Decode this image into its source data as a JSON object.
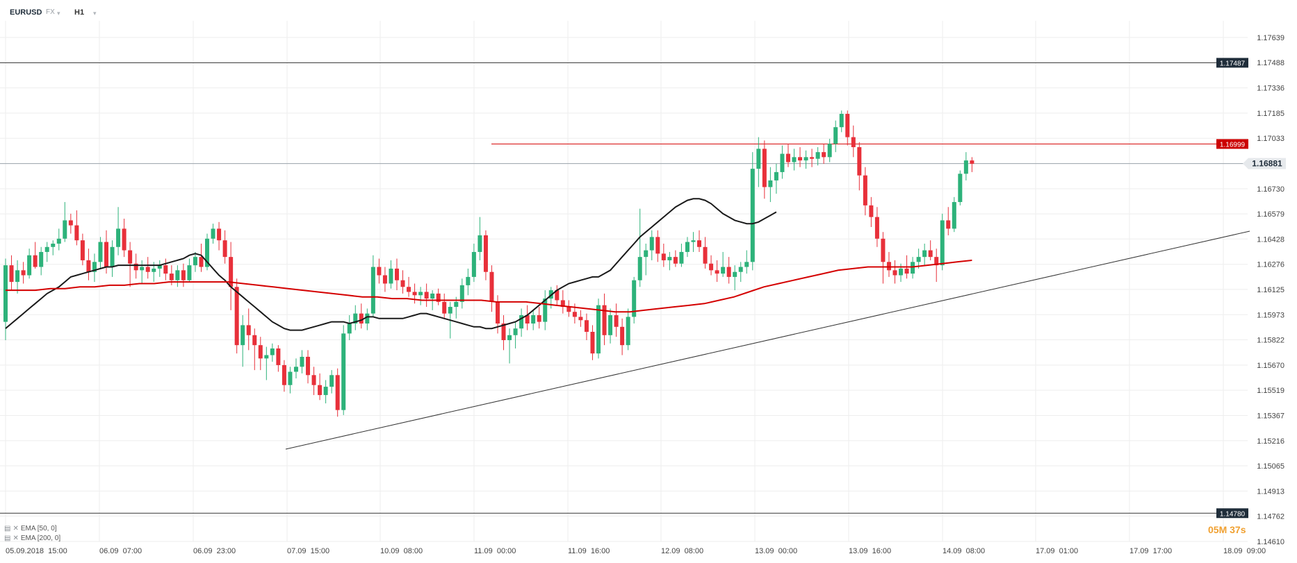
{
  "toolbar": {
    "symbol": "EURUSD",
    "market": "FX",
    "timeframe": "H1"
  },
  "legend": [
    {
      "label": "EMA [50, 0]",
      "color": "#1a1a1a"
    },
    {
      "label": "EMA [200, 0]",
      "color": "#d40000"
    }
  ],
  "countdown": {
    "minutes": "05M",
    "seconds": "37s"
  },
  "price_tags": {
    "upper_line": "1.17487",
    "alert_line": "1.16999",
    "current": "1.16881",
    "lower_line": "1.14780"
  },
  "colors": {
    "up": "#2db27a",
    "down": "#e8303a",
    "ema50": "#1a1a1a",
    "ema200": "#d40000",
    "alert": "#d40000",
    "grid": "#eeeeee",
    "tag_dark": "#1f2d3a",
    "tag_alert": "#cc0000",
    "tag_current_bg": "#e6e9ec",
    "countdown": "#f0a030"
  },
  "chart_data": {
    "type": "candlestick",
    "y_ticks": [
      "1.17639",
      "1.17488",
      "1.17336",
      "1.17185",
      "1.17033",
      "1.16881",
      "1.16730",
      "1.16579",
      "1.16428",
      "1.16276",
      "1.16125",
      "1.15973",
      "1.15822",
      "1.15670",
      "1.15519",
      "1.15367",
      "1.15216",
      "1.15065",
      "1.14913",
      "1.14762",
      "1.14610"
    ],
    "x_ticks": [
      "05.09.2018  15:00",
      "06.09  07:00",
      "06.09  23:00",
      "07.09  15:00",
      "10.09  08:00",
      "11.09  00:00",
      "11.09  16:00",
      "12.09  08:00",
      "13.09  00:00",
      "13.09  16:00",
      "14.09  08:00",
      "17.09  01:00",
      "17.09  17:00",
      "18.09  09:00"
    ],
    "ylim": [
      1.1461,
      1.17639
    ],
    "horizontal_levels": {
      "upper": 1.17487,
      "alert": 1.16999,
      "current": 1.16881,
      "lower": 1.1478
    },
    "trendline": {
      "from": [
        "07.09 16:00",
        1.1519
      ],
      "to": [
        "18.09 08:00",
        1.1647
      ]
    },
    "candles": [
      [
        1.1593,
        1.1631,
        1.1582,
        1.1627
      ],
      [
        1.1627,
        1.1633,
        1.1612,
        1.1617
      ],
      [
        1.1617,
        1.163,
        1.161,
        1.1624
      ],
      [
        1.1624,
        1.1629,
        1.1616,
        1.1621
      ],
      [
        1.1621,
        1.1637,
        1.1619,
        1.1633
      ],
      [
        1.1633,
        1.1641,
        1.1625,
        1.1626
      ],
      [
        1.1626,
        1.1638,
        1.1621,
        1.1635
      ],
      [
        1.1635,
        1.1641,
        1.1629,
        1.1638
      ],
      [
        1.1638,
        1.1642,
        1.1633,
        1.164
      ],
      [
        1.164,
        1.1649,
        1.1636,
        1.1643
      ],
      [
        1.1643,
        1.1665,
        1.1641,
        1.1654
      ],
      [
        1.1654,
        1.1658,
        1.1646,
        1.1651
      ],
      [
        1.1651,
        1.166,
        1.1639,
        1.1642
      ],
      [
        1.1642,
        1.1646,
        1.1627,
        1.163
      ],
      [
        1.163,
        1.1637,
        1.1618,
        1.1623
      ],
      [
        1.1623,
        1.1634,
        1.1617,
        1.1629
      ],
      [
        1.1629,
        1.1644,
        1.1625,
        1.1641
      ],
      [
        1.1641,
        1.1648,
        1.1622,
        1.1626
      ],
      [
        1.1626,
        1.1642,
        1.162,
        1.1638
      ],
      [
        1.1638,
        1.1662,
        1.1633,
        1.1649
      ],
      [
        1.1649,
        1.1655,
        1.1632,
        1.1636
      ],
      [
        1.1636,
        1.1641,
        1.1614,
        1.1628
      ],
      [
        1.1628,
        1.1634,
        1.1619,
        1.1624
      ],
      [
        1.1624,
        1.163,
        1.1616,
        1.1626
      ],
      [
        1.1626,
        1.1632,
        1.1619,
        1.1623
      ],
      [
        1.1623,
        1.1629,
        1.1617,
        1.1625
      ],
      [
        1.1625,
        1.163,
        1.162,
        1.1627
      ],
      [
        1.1627,
        1.1631,
        1.1618,
        1.1622
      ],
      [
        1.1622,
        1.1627,
        1.1615,
        1.1618
      ],
      [
        1.1618,
        1.1627,
        1.1614,
        1.1624
      ],
      [
        1.1624,
        1.1628,
        1.1614,
        1.1618
      ],
      [
        1.1618,
        1.1631,
        1.1617,
        1.1627
      ],
      [
        1.1627,
        1.1635,
        1.1623,
        1.1632
      ],
      [
        1.1632,
        1.164,
        1.1623,
        1.1626
      ],
      [
        1.1626,
        1.1646,
        1.1624,
        1.1643
      ],
      [
        1.1643,
        1.1652,
        1.164,
        1.1649
      ],
      [
        1.1649,
        1.1653,
        1.1636,
        1.1642
      ],
      [
        1.1642,
        1.1648,
        1.1628,
        1.1632
      ],
      [
        1.1632,
        1.1641,
        1.16,
        1.1614
      ],
      [
        1.1614,
        1.1619,
        1.1574,
        1.1579
      ],
      [
        1.1579,
        1.1597,
        1.1566,
        1.1591
      ],
      [
        1.1591,
        1.1601,
        1.1576,
        1.1585
      ],
      [
        1.1585,
        1.1589,
        1.1564,
        1.1579
      ],
      [
        1.1579,
        1.1584,
        1.1564,
        1.1571
      ],
      [
        1.1571,
        1.1578,
        1.1558,
        1.1573
      ],
      [
        1.1573,
        1.158,
        1.1569,
        1.1577
      ],
      [
        1.1577,
        1.1579,
        1.1563,
        1.1567
      ],
      [
        1.1567,
        1.157,
        1.1551,
        1.1555
      ],
      [
        1.1555,
        1.1566,
        1.155,
        1.1563
      ],
      [
        1.1563,
        1.1571,
        1.1559,
        1.1566
      ],
      [
        1.1566,
        1.1576,
        1.1562,
        1.1572
      ],
      [
        1.1572,
        1.1576,
        1.1556,
        1.1561
      ],
      [
        1.1561,
        1.1566,
        1.1549,
        1.1555
      ],
      [
        1.1555,
        1.1562,
        1.1546,
        1.1549
      ],
      [
        1.1549,
        1.1558,
        1.1544,
        1.1554
      ],
      [
        1.1554,
        1.1564,
        1.155,
        1.1561
      ],
      [
        1.1561,
        1.1565,
        1.1536,
        1.154
      ],
      [
        1.154,
        1.1591,
        1.1537,
        1.1586
      ],
      [
        1.1586,
        1.1597,
        1.1582,
        1.1592
      ],
      [
        1.1592,
        1.1603,
        1.1588,
        1.1598
      ],
      [
        1.1598,
        1.1604,
        1.1589,
        1.1592
      ],
      [
        1.1592,
        1.1601,
        1.1588,
        1.1598
      ],
      [
        1.1598,
        1.1633,
        1.1596,
        1.1626
      ],
      [
        1.1626,
        1.1631,
        1.1616,
        1.1621
      ],
      [
        1.1621,
        1.1626,
        1.1611,
        1.1616
      ],
      [
        1.1616,
        1.163,
        1.1613,
        1.1625
      ],
      [
        1.1625,
        1.1631,
        1.1612,
        1.1618
      ],
      [
        1.1618,
        1.1624,
        1.161,
        1.1614
      ],
      [
        1.1614,
        1.162,
        1.1608,
        1.1611
      ],
      [
        1.1611,
        1.1616,
        1.1604,
        1.1609
      ],
      [
        1.1609,
        1.1614,
        1.1603,
        1.1611
      ],
      [
        1.1611,
        1.1616,
        1.1602,
        1.1607
      ],
      [
        1.1607,
        1.1612,
        1.16,
        1.161
      ],
      [
        1.161,
        1.1613,
        1.1603,
        1.1605
      ],
      [
        1.1605,
        1.161,
        1.1595,
        1.1598
      ],
      [
        1.1598,
        1.1605,
        1.1583,
        1.1602
      ],
      [
        1.1602,
        1.1608,
        1.1595,
        1.1605
      ],
      [
        1.1605,
        1.1619,
        1.1601,
        1.1615
      ],
      [
        1.1615,
        1.1625,
        1.1609,
        1.162
      ],
      [
        1.162,
        1.164,
        1.1617,
        1.1635
      ],
      [
        1.1635,
        1.1656,
        1.163,
        1.1645
      ],
      [
        1.1645,
        1.1648,
        1.1618,
        1.1623
      ],
      [
        1.1623,
        1.1627,
        1.1599,
        1.1605
      ],
      [
        1.1605,
        1.1609,
        1.1586,
        1.1592
      ],
      [
        1.1592,
        1.1597,
        1.1576,
        1.1582
      ],
      [
        1.1582,
        1.1589,
        1.1568,
        1.1585
      ],
      [
        1.1585,
        1.1593,
        1.1577,
        1.1589
      ],
      [
        1.1589,
        1.1601,
        1.1584,
        1.1597
      ],
      [
        1.1597,
        1.1603,
        1.1588,
        1.1592
      ],
      [
        1.1592,
        1.16,
        1.1588,
        1.1597
      ],
      [
        1.1597,
        1.1602,
        1.1589,
        1.1593
      ],
      [
        1.1593,
        1.1612,
        1.1588,
        1.1607
      ],
      [
        1.1607,
        1.1614,
        1.1601,
        1.1612
      ],
      [
        1.1612,
        1.1615,
        1.1603,
        1.1606
      ],
      [
        1.1606,
        1.1612,
        1.1598,
        1.1602
      ],
      [
        1.1602,
        1.1606,
        1.1596,
        1.1599
      ],
      [
        1.1599,
        1.1604,
        1.1592,
        1.1596
      ],
      [
        1.1596,
        1.16,
        1.159,
        1.1594
      ],
      [
        1.1594,
        1.1598,
        1.1582,
        1.1587
      ],
      [
        1.1587,
        1.1591,
        1.157,
        1.1574
      ],
      [
        1.1574,
        1.1607,
        1.1571,
        1.1603
      ],
      [
        1.1603,
        1.161,
        1.1579,
        1.1585
      ],
      [
        1.1585,
        1.1601,
        1.158,
        1.1597
      ],
      [
        1.1597,
        1.1604,
        1.1584,
        1.159
      ],
      [
        1.159,
        1.1595,
        1.1573,
        1.1579
      ],
      [
        1.1579,
        1.1601,
        1.1576,
        1.1596
      ],
      [
        1.1596,
        1.162,
        1.1592,
        1.1618
      ],
      [
        1.1618,
        1.1661,
        1.1614,
        1.1632
      ],
      [
        1.1632,
        1.164,
        1.1621,
        1.1636
      ],
      [
        1.1636,
        1.1648,
        1.163,
        1.1644
      ],
      [
        1.1644,
        1.1648,
        1.1629,
        1.1634
      ],
      [
        1.1634,
        1.164,
        1.1626,
        1.163
      ],
      [
        1.163,
        1.1635,
        1.1624,
        1.1632
      ],
      [
        1.1632,
        1.1636,
        1.1626,
        1.1628
      ],
      [
        1.1628,
        1.164,
        1.1626,
        1.1635
      ],
      [
        1.1635,
        1.1644,
        1.1632,
        1.1641
      ],
      [
        1.1641,
        1.1647,
        1.1635,
        1.1642
      ],
      [
        1.1642,
        1.1648,
        1.1635,
        1.1638
      ],
      [
        1.1638,
        1.1644,
        1.1625,
        1.1628
      ],
      [
        1.1628,
        1.1633,
        1.1621,
        1.1624
      ],
      [
        1.1624,
        1.163,
        1.1617,
        1.1622
      ],
      [
        1.1622,
        1.1635,
        1.162,
        1.1626
      ],
      [
        1.1626,
        1.1632,
        1.1616,
        1.162
      ],
      [
        1.162,
        1.1627,
        1.1612,
        1.1623
      ],
      [
        1.1623,
        1.1629,
        1.1617,
        1.1626
      ],
      [
        1.1626,
        1.1636,
        1.1622,
        1.1629
      ],
      [
        1.1629,
        1.1695,
        1.1624,
        1.1685
      ],
      [
        1.1685,
        1.1704,
        1.1674,
        1.1697
      ],
      [
        1.1697,
        1.1702,
        1.1667,
        1.1674
      ],
      [
        1.1674,
        1.1686,
        1.1665,
        1.1678
      ],
      [
        1.1678,
        1.1688,
        1.167,
        1.1683
      ],
      [
        1.1683,
        1.1699,
        1.1679,
        1.1694
      ],
      [
        1.1694,
        1.17,
        1.1686,
        1.1689
      ],
      [
        1.1689,
        1.1697,
        1.1684,
        1.1692
      ],
      [
        1.1692,
        1.1698,
        1.1686,
        1.169
      ],
      [
        1.169,
        1.1696,
        1.1685,
        1.1692
      ],
      [
        1.1692,
        1.1697,
        1.1686,
        1.1691
      ],
      [
        1.1691,
        1.1698,
        1.1687,
        1.1695
      ],
      [
        1.1695,
        1.17,
        1.1688,
        1.1692
      ],
      [
        1.1692,
        1.1703,
        1.1689,
        1.17
      ],
      [
        1.17,
        1.1714,
        1.1695,
        1.171
      ],
      [
        1.171,
        1.172,
        1.1707,
        1.1718
      ],
      [
        1.1718,
        1.172,
        1.1699,
        1.1704
      ],
      [
        1.1704,
        1.1711,
        1.1692,
        1.1698
      ],
      [
        1.1698,
        1.1701,
        1.1672,
        1.1681
      ],
      [
        1.1681,
        1.1686,
        1.1657,
        1.1663
      ],
      [
        1.1663,
        1.1668,
        1.165,
        1.1656
      ],
      [
        1.1656,
        1.1662,
        1.1638,
        1.1643
      ],
      [
        1.1643,
        1.1647,
        1.1616,
        1.1629
      ],
      [
        1.1629,
        1.1635,
        1.162,
        1.1624
      ],
      [
        1.1624,
        1.163,
        1.1616,
        1.1621
      ],
      [
        1.1621,
        1.1628,
        1.1617,
        1.1625
      ],
      [
        1.1625,
        1.1633,
        1.1619,
        1.1622
      ],
      [
        1.1622,
        1.1632,
        1.1619,
        1.1629
      ],
      [
        1.1629,
        1.1637,
        1.1625,
        1.1632
      ],
      [
        1.1632,
        1.164,
        1.1627,
        1.1636
      ],
      [
        1.1636,
        1.1642,
        1.163,
        1.1632
      ],
      [
        1.1632,
        1.1637,
        1.1617,
        1.1627
      ],
      [
        1.1627,
        1.1658,
        1.1624,
        1.1654
      ],
      [
        1.1654,
        1.1662,
        1.1645,
        1.1649
      ],
      [
        1.1649,
        1.1668,
        1.1647,
        1.1665
      ],
      [
        1.1665,
        1.1684,
        1.1663,
        1.1682
      ],
      [
        1.1682,
        1.1695,
        1.1678,
        1.169
      ],
      [
        1.169,
        1.1692,
        1.1683,
        1.1688
      ]
    ],
    "series": [
      {
        "name": "EMA [50, 0]",
        "values": [
          1.1589,
          1.1592,
          1.1595,
          1.1598,
          1.1601,
          1.1604,
          1.1607,
          1.161,
          1.1612,
          1.1614,
          1.1617,
          1.162,
          1.1621,
          1.1622,
          1.1623,
          1.1624,
          1.1625,
          1.1626,
          1.1626,
          1.1627,
          1.1627,
          1.1627,
          1.1627,
          1.1627,
          1.1627,
          1.1627,
          1.1627,
          1.1628,
          1.1629,
          1.163,
          1.1631,
          1.1633,
          1.1634,
          1.1633,
          1.1629,
          1.1625,
          1.1621,
          1.1618,
          1.1614,
          1.1611,
          1.1608,
          1.1605,
          1.1602,
          1.1599,
          1.1596,
          1.1593,
          1.1591,
          1.1589,
          1.1588,
          1.1588,
          1.1588,
          1.1589,
          1.159,
          1.1591,
          1.1592,
          1.1593,
          1.1593,
          1.1593,
          1.1592,
          1.1593,
          1.1594,
          1.1596,
          1.1596,
          1.1595,
          1.1595,
          1.1595,
          1.1595,
          1.1595,
          1.1596,
          1.1597,
          1.1598,
          1.1598,
          1.1597,
          1.1596,
          1.1595,
          1.1594,
          1.1593,
          1.1592,
          1.1591,
          1.159,
          1.159,
          1.1589,
          1.1589,
          1.159,
          1.1591,
          1.1592,
          1.1593,
          1.1595,
          1.1597,
          1.16,
          1.1603,
          1.1606,
          1.1609,
          1.1612,
          1.1614,
          1.1616,
          1.1617,
          1.1618,
          1.1619,
          1.162,
          1.162,
          1.1622,
          1.1624,
          1.1628,
          1.1632,
          1.1636,
          1.164,
          1.1644,
          1.1647,
          1.165,
          1.1653,
          1.1656,
          1.1659,
          1.1662,
          1.1664,
          1.1666,
          1.1667,
          1.1667,
          1.1666,
          1.1664,
          1.1661,
          1.1658,
          1.1656,
          1.1654,
          1.1653,
          1.1652,
          1.1652,
          1.1653,
          1.1655,
          1.1657,
          1.1659
        ]
      },
      {
        "name": "EMA [200, 0]",
        "values": [
          1.1612,
          1.1612,
          1.1612,
          1.1613,
          1.1613,
          1.1614,
          1.1614,
          1.1615,
          1.1615,
          1.1616,
          1.1616,
          1.1617,
          1.1617,
          1.1617,
          1.1617,
          1.1617,
          1.1616,
          1.1615,
          1.1614,
          1.1613,
          1.1612,
          1.1611,
          1.161,
          1.1609,
          1.1608,
          1.1608,
          1.1607,
          1.1607,
          1.1606,
          1.1606,
          1.1606,
          1.1606,
          1.1606,
          1.1605,
          1.1605,
          1.1605,
          1.1604,
          1.1603,
          1.1602,
          1.1601,
          1.16,
          1.1599,
          1.1599,
          1.16,
          1.1601,
          1.1602,
          1.1603,
          1.1604,
          1.1606,
          1.1608,
          1.1611,
          1.1614,
          1.1616,
          1.1618,
          1.162,
          1.1622,
          1.1624,
          1.1625,
          1.1626,
          1.1626,
          1.1626,
          1.1626,
          1.1627,
          1.1628,
          1.1629,
          1.163
        ]
      }
    ]
  }
}
